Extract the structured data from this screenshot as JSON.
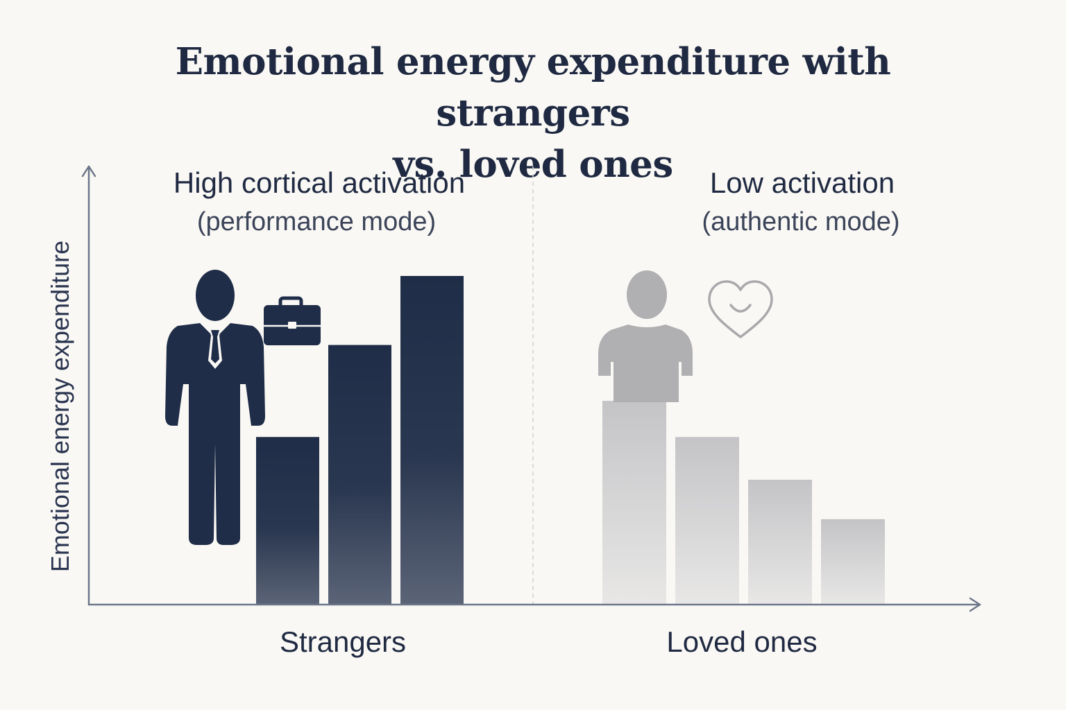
{
  "chart_data": {
    "type": "bar",
    "title_line1": "Emotional energy expenditure with strangers",
    "title_line2": "vs. loved ones",
    "ylabel": "Emotional energy expenditure",
    "xlabel": "",
    "y_ticks_shown": false,
    "ylim": [
      0,
      100
    ],
    "grid": false,
    "legend": "none",
    "groups": [
      {
        "name": "Strangers",
        "annotation_line1": "High cortical activation",
        "annotation_line2": "(performance mode)",
        "values": [
          51,
          79,
          100
        ],
        "color_top": "#1f2d48",
        "color_bottom": "#5b6477",
        "icons": [
          "businessman-icon",
          "briefcase-icon"
        ]
      },
      {
        "name": "Loved ones",
        "annotation_line1": "Low activation",
        "annotation_line2": "(authentic mode)",
        "values": [
          62,
          51,
          38,
          26
        ],
        "color_top": "#c4c4c7",
        "color_bottom": "#e8e7e6",
        "icons": [
          "person-icon",
          "heart-smile-icon"
        ]
      }
    ]
  },
  "colors": {
    "background": "#faf8f4",
    "title": "#1f2a42",
    "axis": "#6c7689",
    "divider": "#d2d2d2",
    "dark_icon": "#1f2d48",
    "light_icon": "#b0b0b3",
    "heart_stroke": "#a9a9ac"
  }
}
